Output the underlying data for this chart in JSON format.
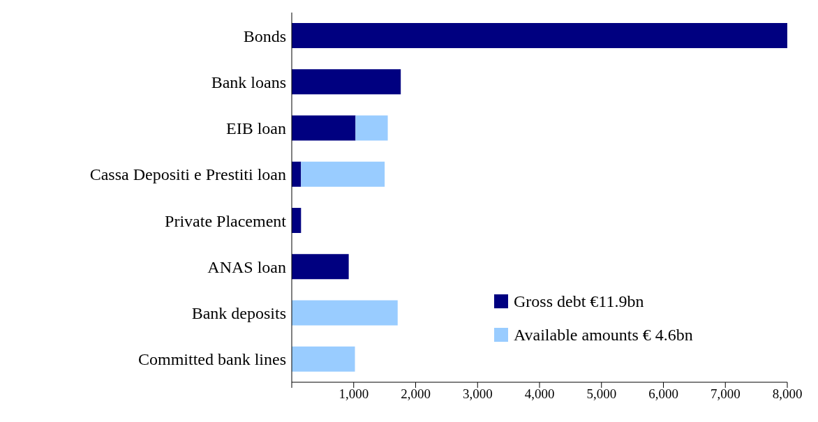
{
  "chart_data": {
    "type": "bar",
    "orientation": "horizontal",
    "stacked": true,
    "categories": [
      "Bonds",
      "Bank loans",
      "EIB loan",
      "Cassa Depositi e Prestiti loan",
      "Private Placement",
      "ANAS loan",
      "Bank deposits",
      "Committed bank lines"
    ],
    "series": [
      {
        "name": "Gross debt €11.9bn",
        "color": "#000080",
        "values": [
          8000,
          1760,
          1030,
          150,
          150,
          920,
          null,
          null
        ]
      },
      {
        "name": "Available amounts € 4.6bn",
        "color": "#99ccff",
        "values": [
          null,
          null,
          520,
          1350,
          null,
          null,
          1710,
          1020
        ]
      }
    ],
    "xlim": [
      0,
      8000
    ],
    "xticks": [
      {
        "value": 0,
        "label": null
      },
      {
        "value": 1000,
        "label": "1,000"
      },
      {
        "value": 2000,
        "label": "2,000"
      },
      {
        "value": 3000,
        "label": "3,000"
      },
      {
        "value": 4000,
        "label": "4,000"
      },
      {
        "value": 5000,
        "label": "5,000"
      },
      {
        "value": 6000,
        "label": "6,000"
      },
      {
        "value": 7000,
        "label": "7,000"
      },
      {
        "value": 8000,
        "label": "8,000"
      }
    ],
    "grid": false,
    "legend": "bottom right"
  }
}
